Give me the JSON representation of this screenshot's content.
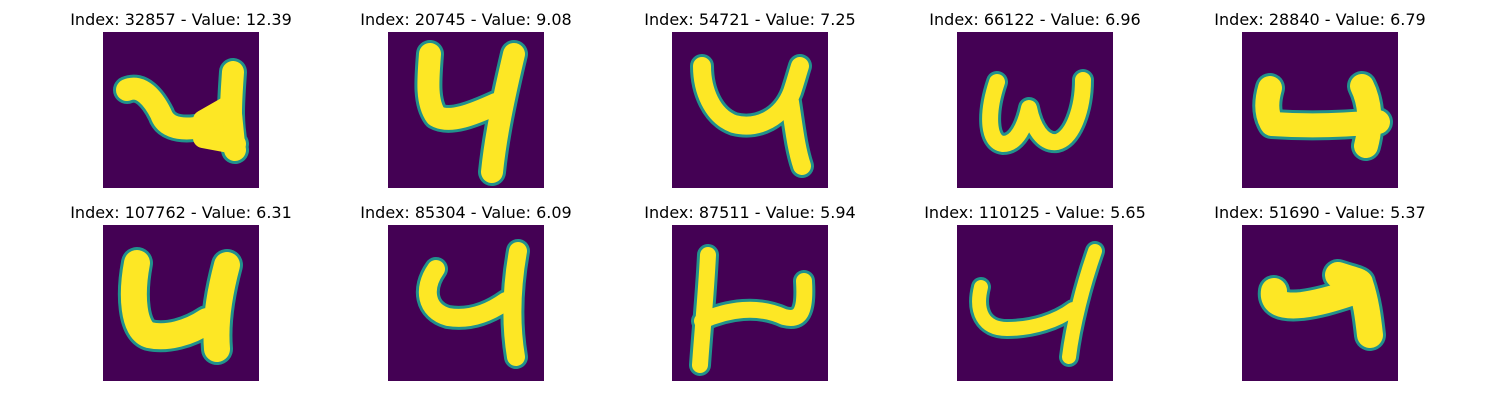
{
  "figure": {
    "background_color": "#ffffff",
    "image_background_color": "#440154",
    "stroke_color": "#fde725",
    "edge_color": "#21918c"
  },
  "panels": [
    {
      "title": "Index: 32857 - Value: 12.39",
      "index": 32857,
      "value": 12.39,
      "glyph": "4"
    },
    {
      "title": "Index: 20745 - Value: 9.08",
      "index": 20745,
      "value": 9.08,
      "glyph": "4"
    },
    {
      "title": "Index: 54721 - Value: 7.25",
      "index": 54721,
      "value": 7.25,
      "glyph": "4"
    },
    {
      "title": "Index: 66122 - Value: 6.96",
      "index": 66122,
      "value": 6.96,
      "glyph": "w"
    },
    {
      "title": "Index: 28840 - Value: 6.79",
      "index": 28840,
      "value": 6.79,
      "glyph": "4-sideways"
    },
    {
      "title": "Index: 107762 - Value: 6.31",
      "index": 107762,
      "value": 6.31,
      "glyph": "4"
    },
    {
      "title": "Index: 85304 - Value: 6.09",
      "index": 85304,
      "value": 6.09,
      "glyph": "4"
    },
    {
      "title": "Index: 87511 - Value: 5.94",
      "index": 87511,
      "value": 5.94,
      "glyph": "4-sideways"
    },
    {
      "title": "Index: 110125 - Value: 5.65",
      "index": 110125,
      "value": 5.65,
      "glyph": "4"
    },
    {
      "title": "Index: 51690 - Value: 5.37",
      "index": 51690,
      "value": 5.37,
      "glyph": "4"
    }
  ]
}
